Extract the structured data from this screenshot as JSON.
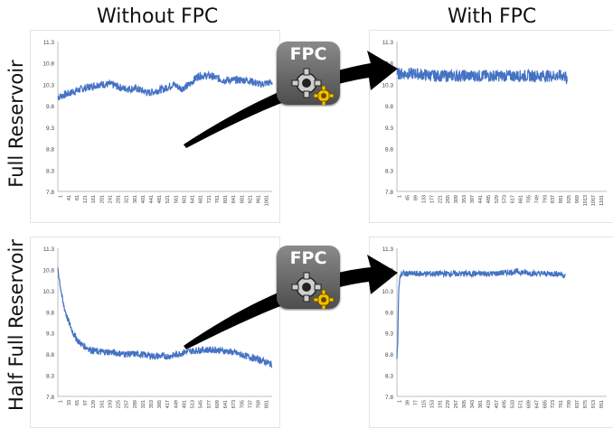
{
  "headers": {
    "left_column": "Without FPC",
    "right_column": "With FPC",
    "top_row": "Full Reservoir",
    "bottom_row": "Half Full Reservoir"
  },
  "badge": {
    "label": "FPC",
    "icon": "gear-icon"
  },
  "colors": {
    "series": "#4472c4",
    "arrow": "#000000",
    "badge": "#666666"
  },
  "chart_data": [
    {
      "id": "full-without",
      "type": "line",
      "title": "",
      "xlabel": "",
      "ylabel": "",
      "ylim": [
        7.8,
        11.3
      ],
      "yticks": [
        "11.3",
        "10.8",
        "10.3",
        "9.8",
        "9.3",
        "8.8",
        "8.3",
        "7.8"
      ],
      "xticks": [
        "1",
        "41",
        "81",
        "121",
        "161",
        "201",
        "241",
        "281",
        "321",
        "361",
        "401",
        "441",
        "481",
        "521",
        "561",
        "601",
        "641",
        "681",
        "721",
        "761",
        "801",
        "841",
        "881",
        "921",
        "961",
        "1001"
      ],
      "xmax": 1040,
      "series_x": [
        0,
        60,
        120,
        200,
        260,
        320,
        380,
        440,
        520,
        560,
        600,
        640,
        680,
        740,
        800,
        860,
        920,
        980,
        1040
      ],
      "series_y": [
        10.0,
        10.1,
        10.2,
        10.3,
        10.3,
        10.2,
        10.2,
        10.1,
        10.2,
        10.3,
        10.2,
        10.3,
        10.5,
        10.5,
        10.4,
        10.4,
        10.4,
        10.3,
        10.35
      ],
      "noise": 0.09
    },
    {
      "id": "full-with",
      "type": "line",
      "title": "",
      "xlabel": "",
      "ylabel": "",
      "ylim": [
        7.8,
        11.3
      ],
      "yticks": [
        "11.3",
        "10.8",
        "10.3",
        "9.8",
        "9.3",
        "8.8",
        "8.3",
        "7.8"
      ],
      "xticks": [
        "1",
        "45",
        "89",
        "133",
        "177",
        "221",
        "265",
        "309",
        "353",
        "397",
        "441",
        "485",
        "529",
        "573",
        "617",
        "661",
        "705",
        "749",
        "793",
        "837",
        "881",
        "925",
        "969",
        "1013",
        "1057",
        "1101"
      ],
      "xmax": 1120,
      "series_x": [
        0,
        100,
        200,
        300,
        400,
        500,
        600,
        700,
        800,
        900,
        910
      ],
      "series_y": [
        10.55,
        10.55,
        10.5,
        10.5,
        10.5,
        10.5,
        10.5,
        10.5,
        10.5,
        10.5,
        10.3
      ],
      "noise": 0.14
    },
    {
      "id": "half-without",
      "type": "line",
      "title": "",
      "xlabel": "",
      "ylabel": "",
      "ylim": [
        7.8,
        11.3
      ],
      "yticks": [
        "11.3",
        "10.8",
        "10.3",
        "9.8",
        "9.3",
        "8.8",
        "8.3",
        "7.8"
      ],
      "xticks": [
        "1",
        "33",
        "65",
        "97",
        "129",
        "161",
        "193",
        "225",
        "257",
        "289",
        "321",
        "353",
        "385",
        "417",
        "449",
        "481",
        "513",
        "545",
        "577",
        "609",
        "641",
        "673",
        "705",
        "737",
        "769",
        "801"
      ],
      "xmax": 840,
      "series_x": [
        0,
        5,
        20,
        40,
        60,
        80,
        100,
        130,
        160,
        200,
        260,
        320,
        380,
        440,
        500,
        560,
        620,
        680,
        740,
        800,
        840
      ],
      "series_y": [
        10.85,
        10.6,
        10.0,
        9.6,
        9.3,
        9.1,
        9.0,
        8.9,
        8.85,
        8.85,
        8.8,
        8.8,
        8.75,
        8.75,
        8.85,
        8.9,
        8.9,
        8.85,
        8.75,
        8.65,
        8.55
      ],
      "noise": 0.08
    },
    {
      "id": "half-with",
      "type": "line",
      "title": "",
      "xlabel": "",
      "ylabel": "",
      "ylim": [
        7.8,
        11.3
      ],
      "yticks": [
        "11.3",
        "10.8",
        "10.3",
        "9.8",
        "9.3",
        "8.8",
        "8.3",
        "7.8"
      ],
      "xticks": [
        "1",
        "39",
        "77",
        "115",
        "153",
        "191",
        "229",
        "267",
        "305",
        "343",
        "381",
        "419",
        "457",
        "495",
        "533",
        "571",
        "609",
        "647",
        "685",
        "723",
        "761",
        "799",
        "837",
        "875",
        "913",
        "951"
      ],
      "xmax": 970,
      "series_x": [
        0,
        4,
        8,
        14,
        20,
        60,
        150,
        250,
        350,
        450,
        550,
        650,
        750,
        780
      ],
      "series_y": [
        8.75,
        9.1,
        10.3,
        10.6,
        10.7,
        10.7,
        10.7,
        10.7,
        10.7,
        10.7,
        10.75,
        10.7,
        10.7,
        10.65
      ],
      "noise": 0.07
    }
  ]
}
